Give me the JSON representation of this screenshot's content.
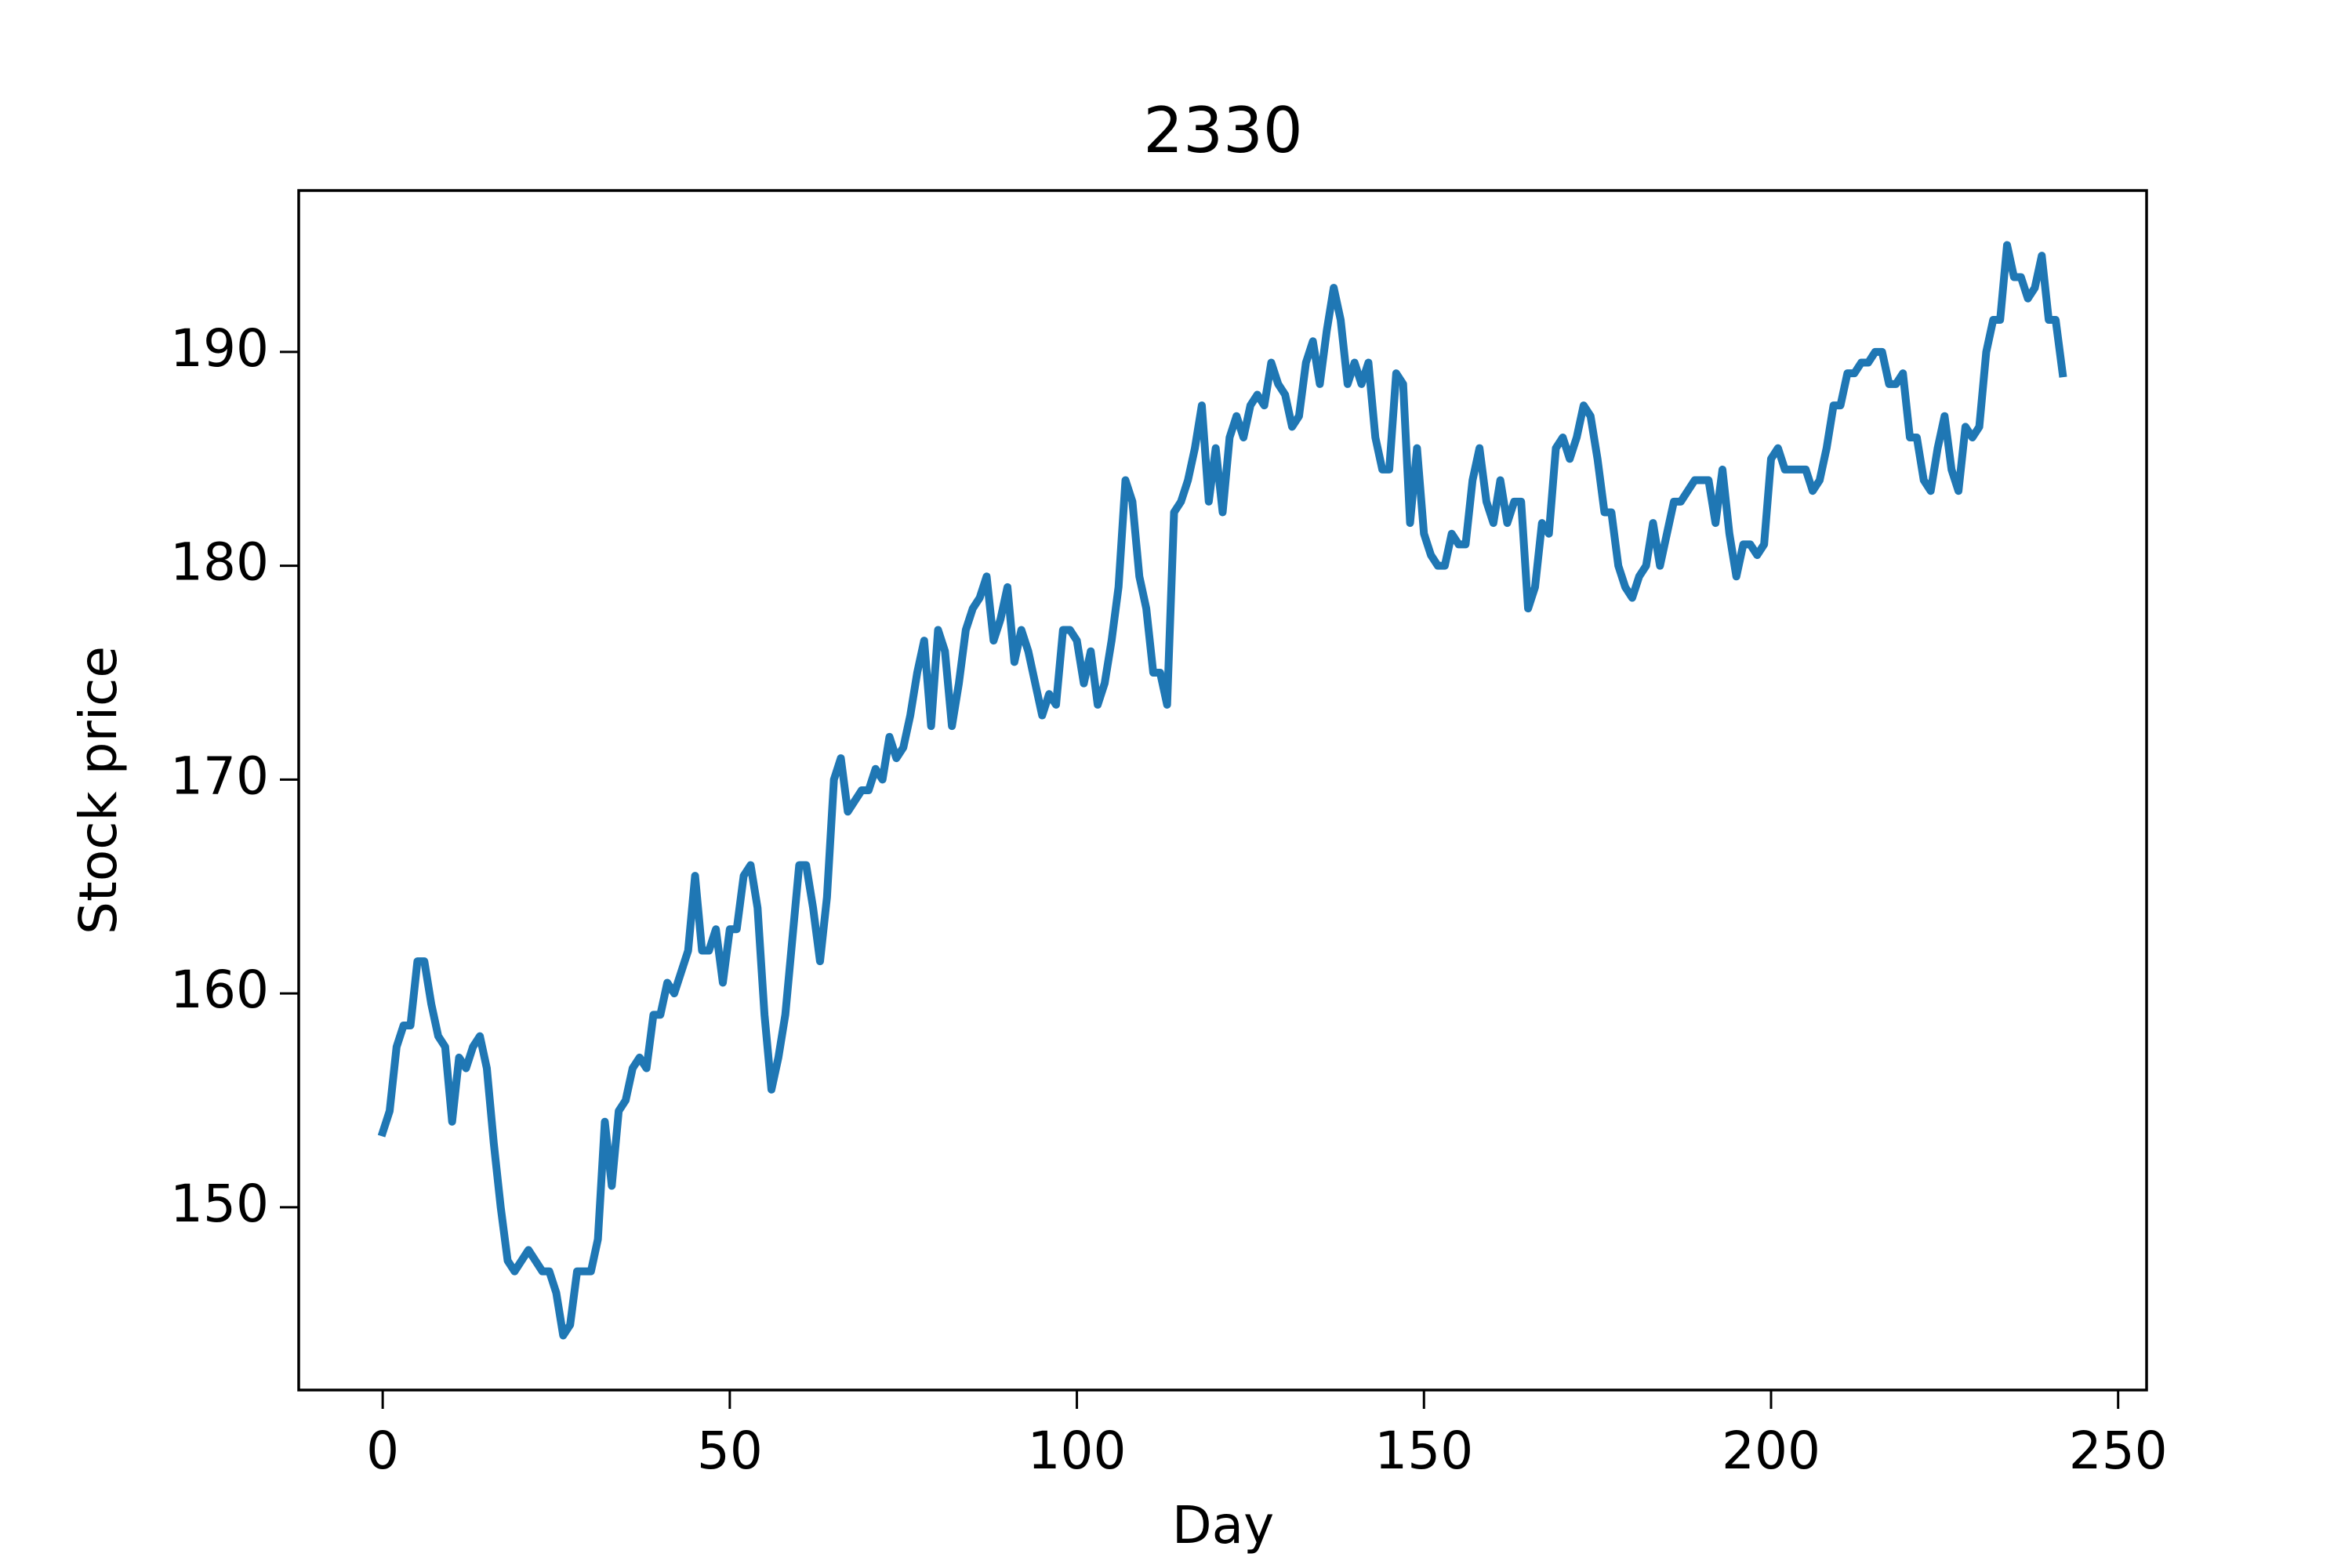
{
  "chart_data": {
    "type": "line",
    "title": "2330",
    "x_label": "Day",
    "y_label": "Stock price",
    "color": "#1f77b4",
    "x": [
      0,
      1,
      2,
      3,
      4,
      5,
      6,
      7,
      8,
      9,
      10,
      11,
      12,
      13,
      14,
      15,
      16,
      17,
      18,
      19,
      20,
      21,
      22,
      23,
      24,
      25,
      26,
      27,
      28,
      29,
      30,
      31,
      32,
      33,
      34,
      35,
      36,
      37,
      38,
      39,
      40,
      41,
      42,
      43,
      44,
      45,
      46,
      47,
      48,
      49,
      50,
      51,
      52,
      53,
      54,
      55,
      56,
      57,
      58,
      59,
      60,
      61,
      62,
      63,
      64,
      65,
      66,
      67,
      68,
      69,
      70,
      71,
      72,
      73,
      74,
      75,
      76,
      77,
      78,
      79,
      80,
      81,
      82,
      83,
      84,
      85,
      86,
      87,
      88,
      89,
      90,
      91,
      92,
      93,
      94,
      95,
      96,
      97,
      98,
      99,
      100,
      101,
      102,
      103,
      104,
      105,
      106,
      107,
      108,
      109,
      110,
      111,
      112,
      113,
      114,
      115,
      116,
      117,
      118,
      119,
      120,
      121,
      122,
      123,
      124,
      125,
      126,
      127,
      128,
      129,
      130,
      131,
      132,
      133,
      134,
      135,
      136,
      137,
      138,
      139,
      140,
      141,
      142,
      143,
      144,
      145,
      146,
      147,
      148,
      149,
      150,
      151,
      152,
      153,
      154,
      155,
      156,
      157,
      158,
      159,
      160,
      161,
      162,
      163,
      164,
      165,
      166,
      167,
      168,
      169,
      170,
      171,
      172,
      173,
      174,
      175,
      176,
      177,
      178,
      179,
      180,
      181,
      182,
      183,
      184,
      185,
      186,
      187,
      188,
      189,
      190,
      191,
      192,
      193,
      194,
      195,
      196,
      197,
      198,
      199,
      200,
      201,
      202,
      203,
      204,
      205,
      206,
      207,
      208,
      209,
      210,
      211,
      212,
      213,
      214,
      215,
      216,
      217,
      218,
      219,
      220,
      221,
      222,
      223,
      224,
      225,
      226,
      227,
      228,
      229,
      230,
      231,
      232,
      233,
      234,
      235,
      236,
      237,
      238,
      239,
      240,
      241,
      242
    ],
    "values": [
      153.5,
      154.5,
      157.5,
      158.5,
      158.5,
      161.5,
      161.5,
      159.5,
      158,
      157.5,
      154,
      157,
      156.5,
      157.5,
      158,
      156.5,
      153,
      150,
      147.5,
      147,
      147.5,
      148,
      147.5,
      147,
      147,
      146,
      144,
      144.5,
      147,
      147,
      147,
      148.5,
      154,
      151,
      154.5,
      155,
      156.5,
      157,
      156.5,
      159,
      159,
      160.5,
      160,
      161,
      162,
      165.5,
      162,
      162,
      163,
      160.5,
      163,
      163,
      165.5,
      166,
      164,
      159,
      155.5,
      157,
      159,
      162.5,
      166,
      166,
      164,
      161.5,
      164.5,
      170,
      171,
      168.5,
      169,
      169.5,
      169.5,
      170.5,
      170,
      172,
      171,
      171.5,
      173,
      175,
      176.5,
      172.5,
      177,
      176,
      172.5,
      174.5,
      177,
      178,
      178.5,
      179.5,
      176.5,
      177.5,
      179,
      175.5,
      177,
      176,
      174.5,
      173,
      174,
      173.5,
      177,
      177,
      176.5,
      174.5,
      176,
      173.5,
      174.5,
      176.5,
      179,
      184,
      183,
      179.5,
      178,
      175,
      175,
      173.5,
      182.5,
      183,
      184,
      185.5,
      187.5,
      183,
      185.5,
      182.5,
      186,
      187,
      186,
      187.5,
      188,
      187.5,
      189.5,
      188.5,
      188,
      186.5,
      187,
      189.5,
      190.5,
      188.5,
      191,
      193,
      191.5,
      188.5,
      189.5,
      188.5,
      189.5,
      186,
      184.5,
      184.5,
      189,
      188.5,
      182,
      185.5,
      181.5,
      180.5,
      180,
      180,
      181.5,
      181,
      181,
      184,
      185.5,
      183,
      182,
      184,
      182,
      183,
      183,
      178,
      179,
      182,
      181.5,
      185.5,
      186,
      185,
      186,
      187.5,
      187,
      185,
      182.5,
      182.5,
      180,
      179,
      178.5,
      179.5,
      180,
      182,
      180,
      181.5,
      183,
      183,
      183.5,
      184,
      184,
      184,
      182,
      184.5,
      181.5,
      179.5,
      181,
      181,
      180.5,
      181,
      185,
      185.5,
      184.5,
      184.5,
      184.5,
      184.5,
      183.5,
      184,
      185.5,
      187.5,
      187.5,
      189,
      189,
      189.5,
      189.5,
      190,
      190,
      188.5,
      188.5,
      189,
      186,
      186,
      184,
      183.5,
      185.5,
      187,
      184.5,
      183.5,
      186.5,
      186,
      186.5,
      190,
      191.5,
      191.5,
      195,
      193.5,
      193.5,
      192.5,
      193,
      194.5,
      191.5,
      191.5,
      189
    ],
    "xlim": [
      -12.1,
      254.1
    ],
    "ylim": [
      141.45,
      197.55
    ],
    "xticks": [
      0,
      50,
      100,
      150,
      200,
      250
    ],
    "yticks": [
      150,
      160,
      170,
      180,
      190
    ],
    "grid": false
  }
}
